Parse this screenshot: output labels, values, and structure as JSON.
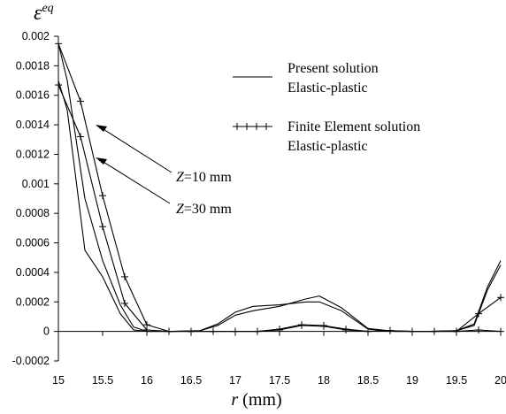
{
  "chart_data": {
    "type": "line",
    "ylabel": "ε",
    "ylabel_superscript": "eq",
    "xlabel_var": "r",
    "xlabel_unit": " (mm)",
    "xlim": [
      15,
      20
    ],
    "ylim": [
      -0.0002,
      0.002
    ],
    "x_ticks": [
      15,
      15.5,
      16,
      16.5,
      17,
      17.5,
      18,
      18.5,
      19,
      19.5,
      20
    ],
    "x_tick_labels": [
      "15",
      "15.5",
      "16",
      "16.5",
      "17",
      "17.5",
      "18",
      "18.5",
      "19",
      "19.5",
      "20"
    ],
    "y_ticks": [
      -0.0002,
      0,
      0.0002,
      0.0004,
      0.0006,
      0.0008,
      0.001,
      0.0012,
      0.0014,
      0.0016,
      0.0018,
      0.002
    ],
    "y_tick_labels": [
      "-0.0002",
      "0",
      "0.0002",
      "0.0004",
      "0.0006",
      "0.0008",
      "0.001",
      "0.0012",
      "0.0014",
      "0.0016",
      "0.0018",
      "0.002"
    ],
    "legend": {
      "placement": "top-right",
      "entries": [
        {
          "line1": "Present solution",
          "line2": "Elastic-plastic",
          "style": "line"
        },
        {
          "line1": "Finite Element solution",
          "line2": "Elastic-plastic",
          "style": "line-plus"
        }
      ]
    },
    "annotations": [
      {
        "var": "Z",
        "text": "=10 mm",
        "target": [
          15.25,
          0.00141
        ]
      },
      {
        "var": "Z",
        "text": "=30 mm",
        "target": [
          15.25,
          0.00115
        ]
      }
    ],
    "series": [
      {
        "style": "line",
        "x": [
          15,
          15.1,
          15.3,
          15.5,
          15.7,
          15.85,
          16,
          16.3,
          16.6,
          16.8,
          17,
          17.2,
          17.5,
          17.8,
          17.95,
          18.2,
          18.5,
          18.8,
          19.2,
          19.5,
          19.7,
          19.85,
          20
        ],
        "y": [
          0.00195,
          0.0017,
          0.0009,
          0.00048,
          0.00018,
          3e-05,
          0,
          0,
          5e-06,
          4e-05,
          0.00011,
          0.00014,
          0.00017,
          0.00022,
          0.00024,
          0.00016,
          2e-05,
          0,
          0,
          5e-06,
          5e-05,
          0.0003,
          0.00048
        ]
      },
      {
        "style": "line",
        "x": [
          15,
          15.1,
          15.3,
          15.5,
          15.7,
          15.85,
          16,
          16.3,
          16.6,
          16.8,
          17,
          17.2,
          17.5,
          17.8,
          17.95,
          18.2,
          18.5,
          18.8,
          19.2,
          19.5,
          19.7,
          19.85,
          20
        ],
        "y": [
          0.0017,
          0.0015,
          0.00055,
          0.00037,
          0.00012,
          1e-05,
          0,
          0,
          5e-06,
          5e-05,
          0.00013,
          0.00017,
          0.00018,
          0.0002,
          0.0002,
          0.00014,
          1.5e-05,
          0,
          0,
          5e-06,
          4e-05,
          0.00028,
          0.00045
        ]
      },
      {
        "style": "line-plus",
        "x": [
          15,
          15.25,
          15.5,
          15.75,
          16,
          16.25,
          16.5,
          16.75,
          17,
          17.25,
          17.5,
          17.75,
          18,
          18.25,
          18.5,
          18.75,
          19,
          19.25,
          19.5,
          19.75,
          20
        ],
        "y": [
          0.00195,
          0.00156,
          0.00092,
          0.00037,
          4.5e-05,
          0,
          0,
          0,
          0,
          0,
          1.5e-05,
          4.5e-05,
          4e-05,
          1.5e-05,
          0,
          5e-06,
          0,
          0,
          0,
          0.00012,
          0.00023
        ]
      },
      {
        "style": "line-plus",
        "x": [
          15,
          15.25,
          15.5,
          15.75,
          16,
          16.25,
          16.5,
          16.75,
          17,
          17.25,
          17.5,
          17.75,
          18,
          18.25,
          18.5,
          18.75,
          19,
          19.25,
          19.5,
          19.75,
          20
        ],
        "y": [
          0.00167,
          0.00132,
          0.00071,
          0.00019,
          1e-05,
          0,
          0,
          0,
          0,
          0,
          1e-05,
          4e-05,
          3.5e-05,
          1e-05,
          0,
          5e-06,
          0,
          0,
          0,
          1e-05,
          0
        ]
      }
    ]
  }
}
